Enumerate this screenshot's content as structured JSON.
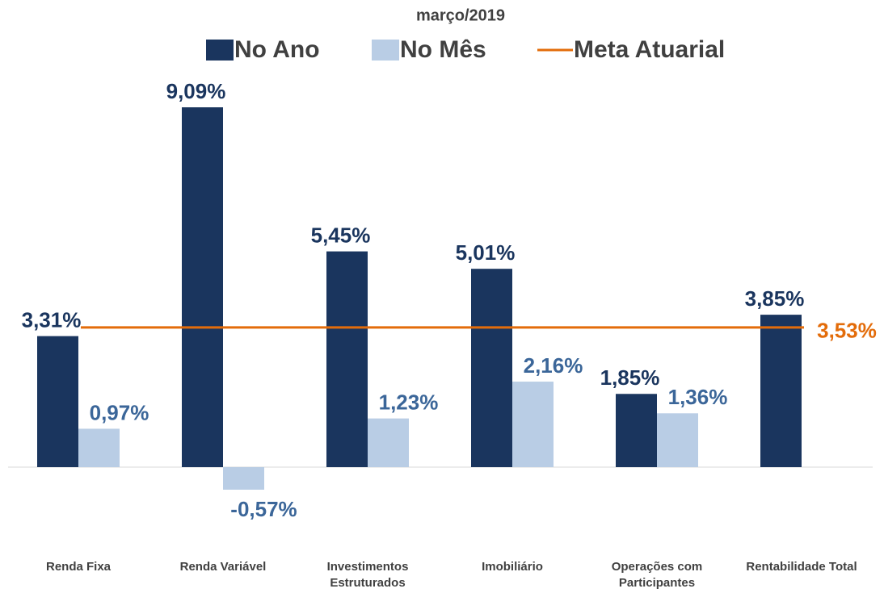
{
  "chart_data": {
    "type": "bar",
    "title": "março/2019",
    "categories": [
      "Renda Fixa",
      "Renda Variável",
      "Investimentos Estruturados",
      "Imobiliário",
      "Operações com Participantes",
      "Rentabilidade Total"
    ],
    "series": [
      {
        "name": "No Ano",
        "color": "#1a355e",
        "values": [
          3.31,
          9.09,
          5.45,
          5.01,
          1.85,
          3.85
        ],
        "value_labels": [
          "3,31%",
          "9,09%",
          "5,45%",
          "5,01%",
          "1,85%",
          "3,85%"
        ]
      },
      {
        "name": "No Mês",
        "color": "#b9cde5",
        "label_color": "#3b6699",
        "values": [
          0.97,
          -0.57,
          1.23,
          2.16,
          1.36,
          null
        ],
        "value_labels": [
          "0,97%",
          "-0,57%",
          "1,23%",
          "2,16%",
          "1,36%",
          null
        ]
      }
    ],
    "target": {
      "name": "Meta Atuarial",
      "color": "#e36c0a",
      "value": 3.53,
      "value_label": "3,53%"
    }
  }
}
